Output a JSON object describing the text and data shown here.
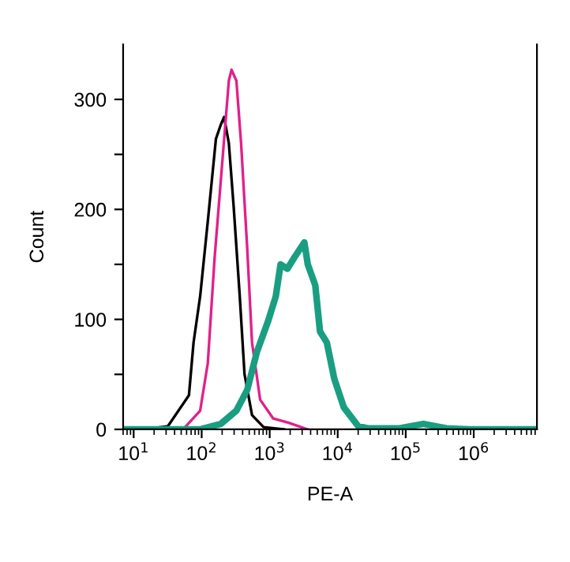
{
  "chart_data": {
    "type": "line",
    "xlabel": "PE-A",
    "ylabel": "Count",
    "log": "x",
    "grid": false,
    "marker": "none",
    "line_style": "solid",
    "xlim": [
      7,
      8500000
    ],
    "xticks": [
      {
        "value": 10,
        "label": "10$^{1}$"
      },
      {
        "value": 100,
        "label": "10$^{2}$"
      },
      {
        "value": 1000,
        "label": "10$^{3}$"
      },
      {
        "value": 10000,
        "label": "10$^{4}$"
      },
      {
        "value": 100000,
        "label": "10$^{5}$"
      },
      {
        "value": 1000000,
        "label": "10$^{6}$"
      }
    ],
    "ylim": [
      0,
      350
    ],
    "yticks": [
      0,
      {
        "value": 50,
        "label": null
      },
      100,
      {
        "value": 150,
        "label": null
      },
      200,
      {
        "value": 250,
        "label": null
      },
      300
    ],
    "series": [
      {
        "color": "#000000",
        "x": [
          7,
          19,
          32,
          65,
          76,
          95,
          123,
          162,
          191,
          214,
          251,
          295,
          363,
          427,
          550,
          813,
          1622
        ],
        "values": [
          0,
          1,
          3,
          31,
          79,
          121,
          189,
          264,
          277,
          284,
          260,
          203,
          121,
          50,
          13,
          2,
          0
        ]
      },
      {
        "color": "#e0218a",
        "x": [
          7,
          55,
          95,
          123,
          155,
          214,
          251,
          275,
          324,
          380,
          468,
          550,
          724,
          1122,
          1905,
          3236,
          3631
        ],
        "values": [
          0,
          1,
          17,
          60,
          156,
          264,
          317,
          327,
          317,
          260,
          164,
          79,
          27,
          10,
          6,
          1,
          0
        ]
      },
      {
        "color": "#1a9e82",
        "x": [
          7,
          95,
          191,
          324,
          468,
          646,
          955,
          1230,
          1445,
          1820,
          2344,
          3236,
          3631,
          4677,
          5495,
          6918,
          8913,
          12300,
          19950,
          27540,
          81280,
          181970,
          398000,
          851000,
          8500000
        ],
        "values": [
          0,
          0,
          5,
          17,
          36,
          70,
          99,
          121,
          150,
          146,
          157,
          170,
          150,
          131,
          89,
          79,
          46,
          20,
          3,
          1,
          1,
          5,
          1,
          0,
          0
        ]
      }
    ]
  }
}
